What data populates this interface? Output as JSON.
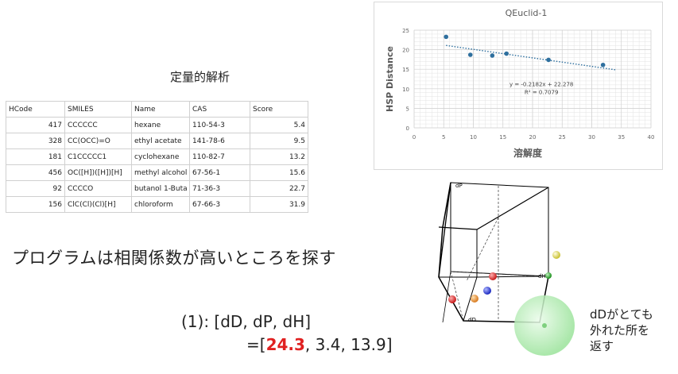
{
  "table_title": "定量的解析",
  "table": {
    "headers": [
      "HCode",
      "SMILES",
      "Name",
      "CAS",
      "Score"
    ],
    "rows": [
      [
        "417",
        "CCCCCC",
        "hexane",
        "110-54-3",
        "5.4"
      ],
      [
        "328",
        "CC(OCC)=O",
        "ethyl acetate",
        "141-78-6",
        "9.5"
      ],
      [
        "181",
        "C1CCCCC1",
        "cyclohexane",
        "110-82-7",
        "13.2"
      ],
      [
        "456",
        "OC([H])([H])[H]",
        "methyl alcohol",
        "67-56-1",
        "15.6"
      ],
      [
        "92",
        "CCCCO",
        "butanol 1-Buta",
        "71-36-3",
        "22.7"
      ],
      [
        "156",
        "ClC(Cl)(Cl)[H]",
        "chloroform",
        "67-66-3",
        "31.9"
      ]
    ]
  },
  "chart_data": {
    "type": "scatter",
    "title": "QEuclid-1",
    "xlabel": "溶解度",
    "ylabel": "HSP Distance",
    "xlim": [
      0,
      40
    ],
    "ylim": [
      0,
      25
    ],
    "x_ticks": [
      "0",
      "5",
      "10",
      "15",
      "20",
      "25",
      "30",
      "35",
      "40"
    ],
    "y_ticks": [
      "0",
      "5",
      "10",
      "15",
      "20",
      "25"
    ],
    "points": [
      {
        "x": 5.4,
        "y": 23.3
      },
      {
        "x": 9.5,
        "y": 18.7
      },
      {
        "x": 13.2,
        "y": 18.5
      },
      {
        "x": 15.6,
        "y": 19.0
      },
      {
        "x": 22.7,
        "y": 17.4
      },
      {
        "x": 31.9,
        "y": 16.1
      }
    ],
    "trendline": {
      "slope": -0.2182,
      "intercept": 22.278,
      "x_range": [
        5.4,
        34
      ]
    },
    "equation": "y = -0.2182x + 22.278",
    "r2": "R² = 0.7079",
    "colors": {
      "point": "#2e6f9e",
      "trend": "#2e6f9e",
      "grid": "#e3e3e3"
    }
  },
  "main_text": "プログラムは相関係数が高いところを探す",
  "formula": {
    "line1": "(1): [dD, dP, dH]",
    "prefix": "=[",
    "highlight": "24.3",
    "rest": ", 3.4, 13.9]"
  },
  "plot3d": {
    "axis_labels": {
      "dP": "dP",
      "dH": "dH",
      "dD": "dD"
    },
    "sphere_colors": [
      "#d42424",
      "#e08a30",
      "#2a3bd0",
      "#d42424",
      "#d8d040",
      "#2aa02a"
    ],
    "big_sphere_color": "#9be39b"
  },
  "note": [
    "dDがとても",
    "外れた所を",
    "返す"
  ]
}
